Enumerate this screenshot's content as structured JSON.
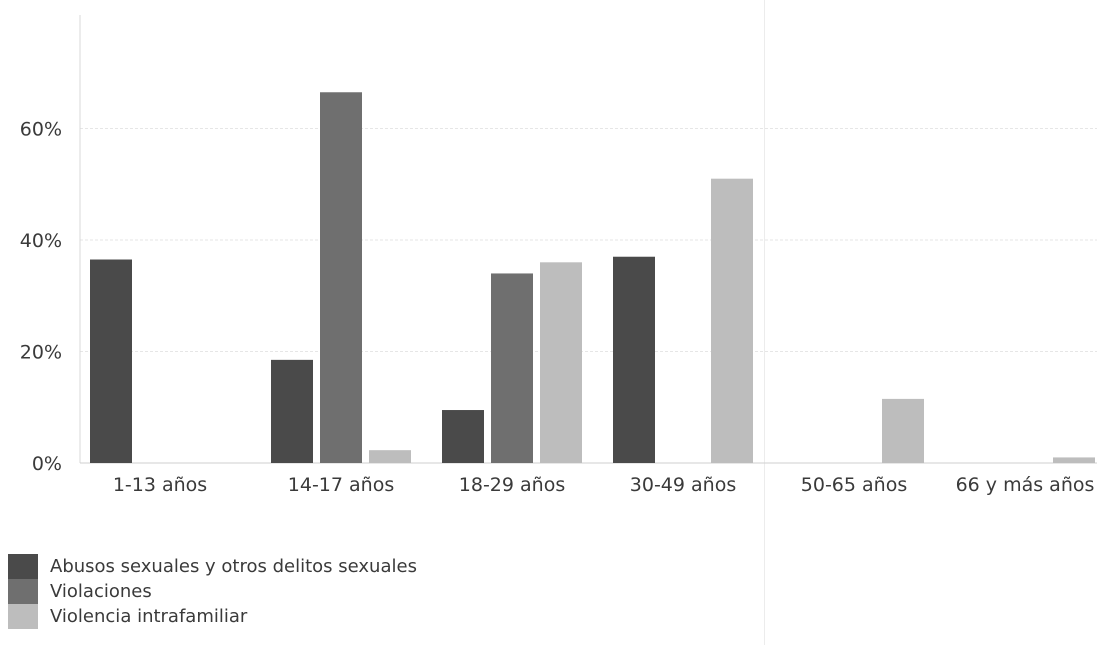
{
  "chart_data": {
    "type": "bar",
    "categories": [
      "1-13 años",
      "14-17 años",
      "18-29 años",
      "30-49 años",
      "50-65 años",
      "66 y más años"
    ],
    "series": [
      {
        "name": "Abusos sexuales y otros delitos sexuales",
        "color": "#4a4a4a",
        "values": [
          36.5,
          18.5,
          9.5,
          37,
          0,
          0
        ]
      },
      {
        "name": "Violaciones",
        "color": "#6f6f6f",
        "values": [
          0,
          66.5,
          34,
          0,
          0,
          0
        ]
      },
      {
        "name": "Violencia intrafamiliar",
        "color": "#bdbdbd",
        "values": [
          0,
          2.3,
          36,
          51,
          11.5,
          1
        ]
      }
    ],
    "y_ticks": [
      "0%",
      "20%",
      "40%",
      "60%"
    ],
    "ylim": [
      0,
      80
    ],
    "title": "",
    "xlabel": "",
    "ylabel": "",
    "grid": true,
    "legend_position": "bottom-left"
  }
}
